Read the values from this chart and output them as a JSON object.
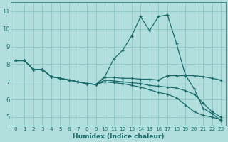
{
  "xlabel": "Humidex (Indice chaleur)",
  "background_color": "#b2dede",
  "grid_color": "#8ec8c8",
  "line_color": "#1a6b6b",
  "xlim": [
    -0.5,
    23.5
  ],
  "ylim": [
    4.5,
    11.5
  ],
  "yticks": [
    5,
    6,
    7,
    8,
    9,
    10,
    11
  ],
  "xticks": [
    0,
    1,
    2,
    3,
    4,
    5,
    6,
    7,
    8,
    9,
    10,
    11,
    12,
    13,
    14,
    15,
    16,
    17,
    18,
    19,
    20,
    21,
    22,
    23
  ],
  "series": [
    [
      8.2,
      8.2,
      7.7,
      7.7,
      7.3,
      7.2,
      7.1,
      7.0,
      6.9,
      6.85,
      7.3,
      8.3,
      8.8,
      9.6,
      10.7,
      9.9,
      10.7,
      10.8,
      9.2,
      7.4,
      6.6,
      5.5,
      5.2,
      4.8
    ],
    [
      8.2,
      8.2,
      7.7,
      7.7,
      7.3,
      7.2,
      7.1,
      7.0,
      6.9,
      6.85,
      7.25,
      7.25,
      7.2,
      7.2,
      7.15,
      7.15,
      7.1,
      7.35,
      7.35,
      7.35,
      7.35,
      7.3,
      7.2,
      7.1
    ],
    [
      8.2,
      8.2,
      7.7,
      7.7,
      7.3,
      7.2,
      7.1,
      7.0,
      6.9,
      6.85,
      7.1,
      7.05,
      7.0,
      6.95,
      6.9,
      6.8,
      6.75,
      6.7,
      6.65,
      6.5,
      6.3,
      5.8,
      5.3,
      5.0
    ],
    [
      8.2,
      8.2,
      7.7,
      7.7,
      7.3,
      7.2,
      7.1,
      7.0,
      6.9,
      6.85,
      7.0,
      6.95,
      6.9,
      6.8,
      6.7,
      6.55,
      6.4,
      6.3,
      6.1,
      5.7,
      5.3,
      5.1,
      5.0,
      4.85
    ]
  ]
}
